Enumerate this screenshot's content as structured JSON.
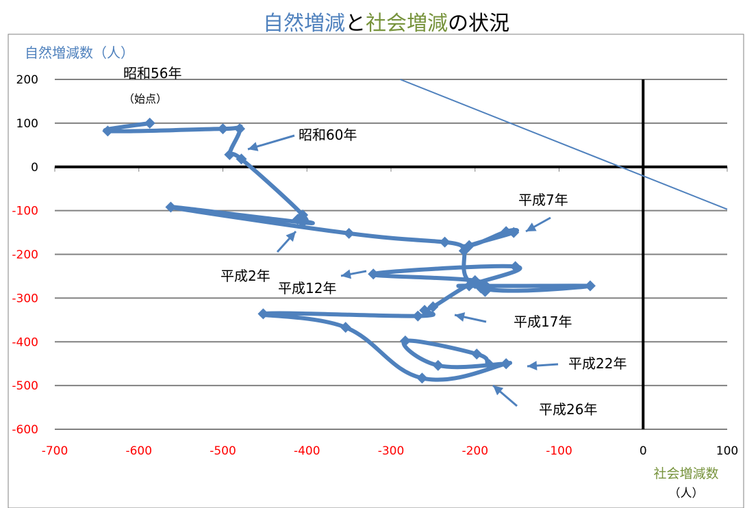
{
  "title": {
    "part1": "自然増減",
    "part2": "と",
    "part3": "社会増減",
    "part4": "の状況"
  },
  "colors": {
    "natural": "#4f81bd",
    "social": "#77933c",
    "negative_tick": "#ff0000",
    "series": "#4f81bd",
    "grid": "#808080",
    "axis": "#000000",
    "black": "#000000"
  },
  "chart_data": {
    "type": "scatter",
    "title": "自然増減と社会増減の状況",
    "ylabel": "自然増減数（人）",
    "xlabel_line1": "社会増減数",
    "xlabel_line2": "（人）",
    "xlim": [
      -700,
      100
    ],
    "ylim": [
      -600,
      200
    ],
    "xticks": [
      -700,
      -600,
      -500,
      -400,
      -300,
      -200,
      -100,
      0,
      100
    ],
    "xtick_labels": [
      "-700",
      "-600",
      "-500",
      "-400",
      "-300",
      "-200",
      "-100",
      "0",
      "100"
    ],
    "yticks": [
      200,
      100,
      0,
      -100,
      -200,
      -300,
      -400,
      -500,
      -600
    ],
    "ytick_labels": [
      "200",
      "100",
      "0",
      "-100",
      "-200",
      "-300",
      "-400",
      "-500",
      "-600"
    ],
    "grid": "horizontal",
    "series": [
      {
        "points": [
          [
            -587,
            100
          ],
          [
            -637,
            82
          ],
          [
            -500,
            87
          ],
          [
            -480,
            87
          ],
          [
            -492,
            28
          ],
          [
            -478,
            18
          ],
          [
            -405,
            -110
          ],
          [
            -411,
            -120
          ],
          [
            -405,
            -127
          ],
          [
            -562,
            -92
          ],
          [
            -350,
            -152
          ],
          [
            -236,
            -172
          ],
          [
            -207,
            -180
          ],
          [
            -163,
            -148
          ],
          [
            -154,
            -150
          ],
          [
            -207,
            -180
          ],
          [
            -213,
            -192
          ],
          [
            -193,
            -277
          ],
          [
            -63,
            -272
          ],
          [
            -207,
            -272
          ],
          [
            -200,
            -267
          ],
          [
            -152,
            -228
          ],
          [
            -321,
            -245
          ],
          [
            -200,
            -260
          ],
          [
            -188,
            -285
          ],
          [
            -201,
            -265
          ],
          [
            -250,
            -320
          ],
          [
            -260,
            -328
          ],
          [
            -268,
            -341
          ],
          [
            -452,
            -336
          ],
          [
            -354,
            -367
          ],
          [
            -263,
            -483
          ],
          [
            -163,
            -450
          ],
          [
            -183,
            -452
          ],
          [
            -198,
            -428
          ],
          [
            -283,
            -398
          ],
          [
            -244,
            -454
          ],
          [
            -163,
            -450
          ]
        ]
      }
    ],
    "reference_line": {
      "from": [
        -289,
        200
      ],
      "to": [
        100,
        -97
      ]
    },
    "annotations": [
      {
        "text": "昭和56年"
      },
      {
        "text": "（始点）"
      },
      {
        "text": "昭和60年"
      },
      {
        "text": "平成2年"
      },
      {
        "text": "平成7年"
      },
      {
        "text": "平成12年"
      },
      {
        "text": "平成17年"
      },
      {
        "text": "平成22年"
      },
      {
        "text": "平成26年"
      }
    ]
  }
}
